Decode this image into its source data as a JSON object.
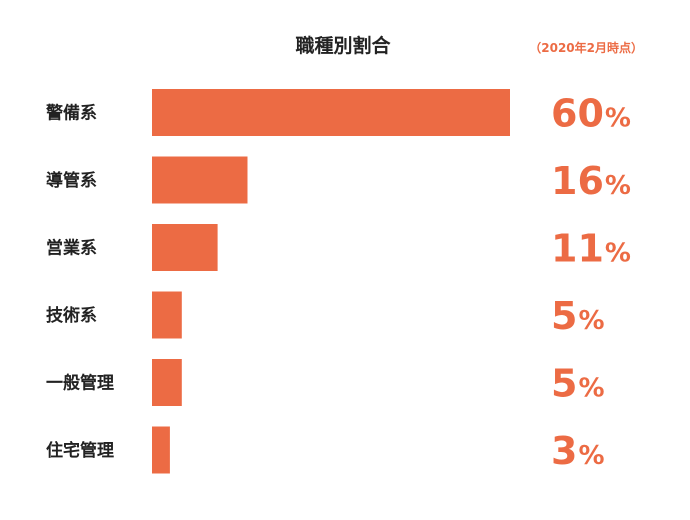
{
  "colors": {
    "bar": "#ec6b44",
    "accent": "#ec6b44",
    "text": "#222222"
  },
  "chart_data": {
    "type": "bar",
    "orientation": "horizontal",
    "title": "職種別割合",
    "note": "（2020年2月時点）",
    "categories": [
      "警備系",
      "導管系",
      "営業系",
      "技術系",
      "一般管理",
      "住宅管理"
    ],
    "values": [
      60,
      16,
      11,
      5,
      5,
      3
    ],
    "display_values": [
      "60",
      "16",
      "11",
      "5",
      "5",
      "3"
    ],
    "unit": "%",
    "xlim": [
      0,
      60
    ],
    "grid": false,
    "legend": "none"
  }
}
